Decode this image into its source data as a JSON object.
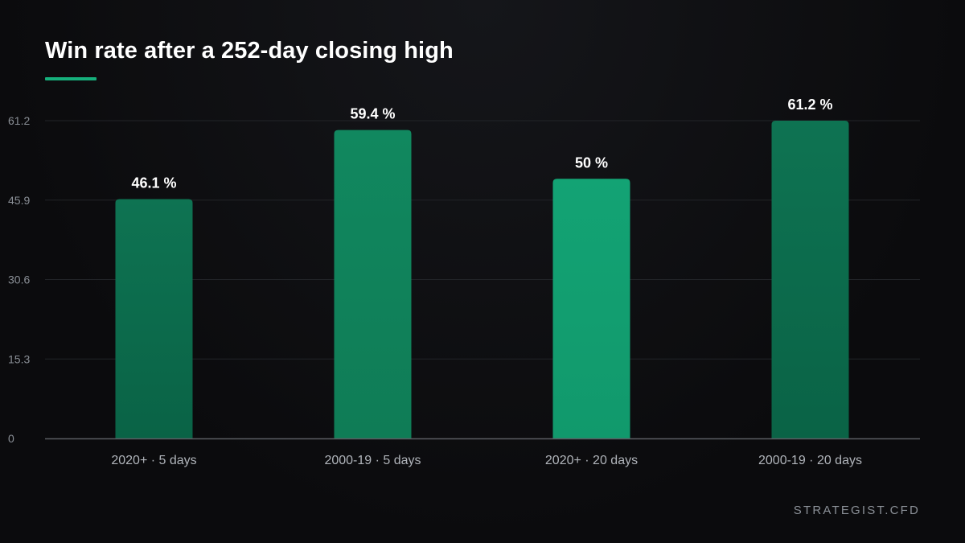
{
  "title": "Win rate after a 252-day closing high",
  "watermark": "STRATEGIST.CFD",
  "colors": {
    "background": "#0b0b0d",
    "accent": "#16b07c",
    "bar_dark": "#0b6b4c",
    "bar_mid": "#10845c",
    "bar_light": "#12a070",
    "grid": "#222428",
    "axis": "#5a5d62",
    "tick_text": "#8a8f96",
    "category_text": "#b0b4ba"
  },
  "chart_data": {
    "type": "bar",
    "title": "Win rate after a 252-day closing high",
    "xlabel": "",
    "ylabel": "",
    "categories": [
      "2020+ · 5 days",
      "2000-19 · 5 days",
      "2020+ · 20 days",
      "2000-19 · 20 days"
    ],
    "values": [
      46.1,
      59.4,
      50,
      61.2
    ],
    "data_labels": [
      "46.1 %",
      "59.4 %",
      "50 %",
      "61.2 %"
    ],
    "bar_colors": [
      "#0b6b4c",
      "#10845c",
      "#12a070",
      "#0b6b4c"
    ],
    "yticks": [
      0,
      15.3,
      30.6,
      45.9,
      61.2
    ],
    "ylim": [
      0,
      61.2
    ],
    "grid": true,
    "legend": "none"
  }
}
